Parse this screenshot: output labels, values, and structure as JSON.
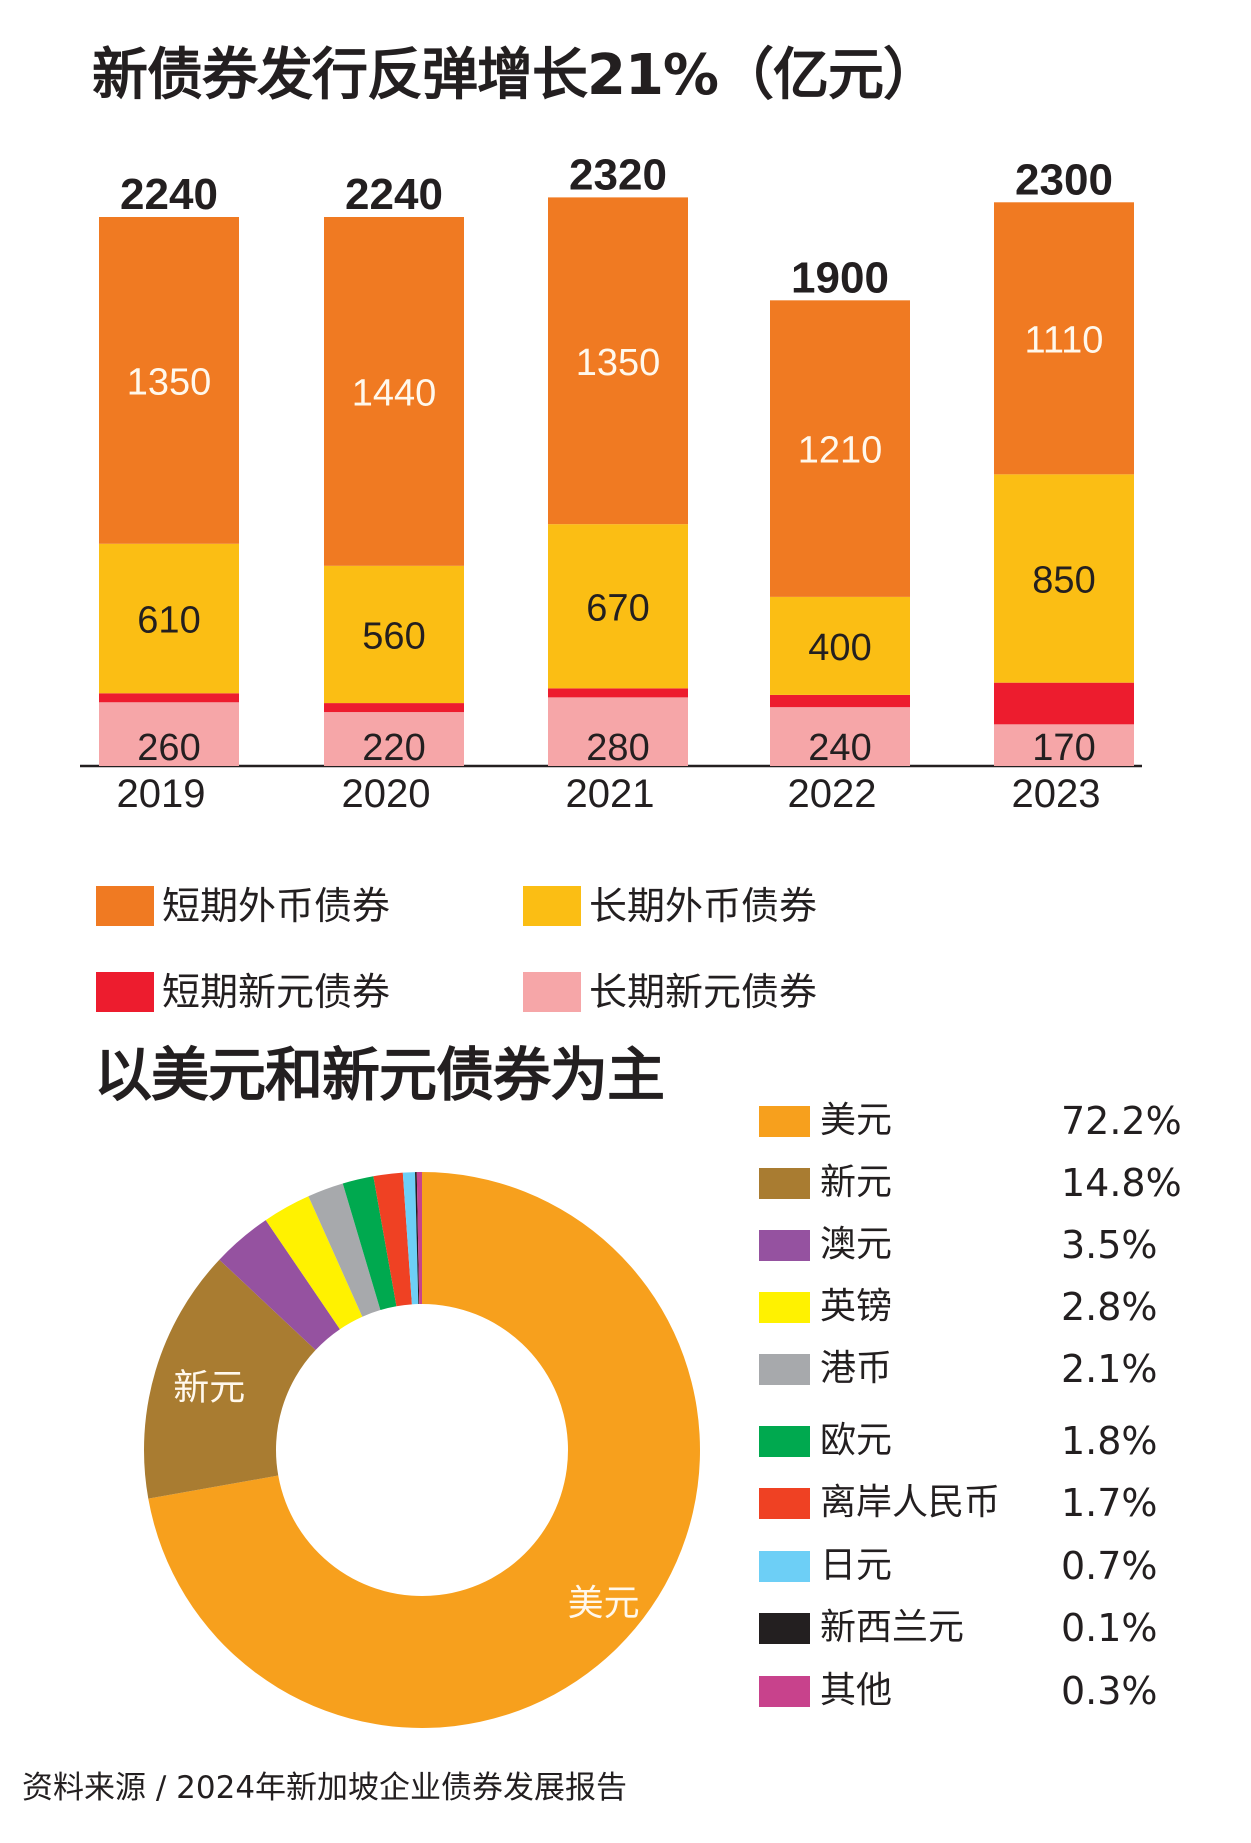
{
  "chart_data": [
    {
      "type": "bar",
      "stacked": true,
      "title": "新债券发行反弹增长21%（亿元）",
      "xlabel": "",
      "ylabel": "",
      "categories": [
        "2019",
        "2020",
        "2021",
        "2022",
        "2023"
      ],
      "totals": [
        2240,
        2240,
        2320,
        1900,
        2300
      ],
      "ylim": [
        0,
        2400
      ],
      "grid": false,
      "series": [
        {
          "name": "长期新元债券",
          "color": "#f6a6a8",
          "values": [
            260,
            220,
            280,
            240,
            170
          ],
          "labels": [
            "260",
            "220",
            "280",
            "240",
            "170"
          ]
        },
        {
          "name": "短期新元债券",
          "color": "#ed1c2e",
          "values": [
            20,
            20,
            20,
            50,
            170
          ],
          "labels": [
            "",
            "",
            "",
            "",
            ""
          ]
        },
        {
          "name": "长期外币债券",
          "color": "#fbbe14",
          "values": [
            610,
            560,
            670,
            400,
            850
          ],
          "labels": [
            "610",
            "560",
            "670",
            "400",
            "850"
          ]
        },
        {
          "name": "短期外币债券",
          "color": "#f07a22",
          "values": [
            1350,
            1440,
            1350,
            1210,
            1110
          ],
          "labels": [
            "1350",
            "1440",
            "1350",
            "1210",
            "1110"
          ]
        }
      ],
      "legend": {
        "placement": "bottom",
        "items": [
          {
            "name": "短期外币债券",
            "color": "#f07a22"
          },
          {
            "name": "长期外币债券",
            "color": "#fbbe14"
          },
          {
            "name": "短期新元债券",
            "color": "#ed1c2e"
          },
          {
            "name": "长期新元债券",
            "color": "#f6a6a8"
          }
        ]
      }
    },
    {
      "type": "pie",
      "donut": true,
      "title": "以美元和新元债券为主",
      "slices": [
        {
          "name": "美元",
          "value": 72.2,
          "label": "72.2%",
          "color": "#f7a01d",
          "inner_label": "美元"
        },
        {
          "name": "新元",
          "value": 14.8,
          "label": "14.8%",
          "color": "#a97c31",
          "inner_label": "新元"
        },
        {
          "name": "澳元",
          "value": 3.5,
          "label": "3.5%",
          "color": "#9552a0",
          "inner_label": ""
        },
        {
          "name": "英镑",
          "value": 2.8,
          "label": "2.8%",
          "color": "#fff200",
          "inner_label": ""
        },
        {
          "name": "港币",
          "value": 2.1,
          "label": "2.1%",
          "color": "#a7a9ac",
          "inner_label": ""
        },
        {
          "name": "欧元",
          "value": 1.8,
          "label": "1.8%",
          "color": "#00a94f",
          "inner_label": ""
        },
        {
          "name": "离岸人民币",
          "value": 1.7,
          "label": "1.7%",
          "color": "#ef4123",
          "inner_label": ""
        },
        {
          "name": "日元",
          "value": 0.7,
          "label": "0.7%",
          "color": "#6dcff6",
          "inner_label": ""
        },
        {
          "name": "新西兰元",
          "value": 0.1,
          "label": "0.1%",
          "color": "#231f20",
          "inner_label": ""
        },
        {
          "name": "其他",
          "value": 0.3,
          "label": "0.3%",
          "color": "#c8428c",
          "inner_label": ""
        }
      ],
      "legend": {
        "placement": "right"
      }
    }
  ],
  "footer": "资料来源 / 2024年新加坡企业债券发展报告"
}
